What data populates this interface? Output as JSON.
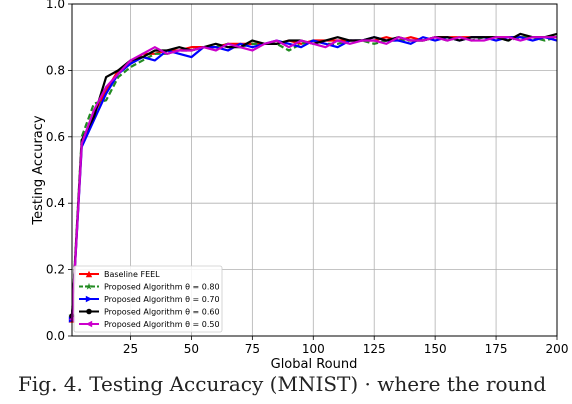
{
  "chart_data": {
    "type": "line",
    "xlabel": "Global Round",
    "ylabel": "Testing Accuracy",
    "xlim": [
      1,
      200
    ],
    "ylim": [
      0.0,
      1.0
    ],
    "xticks": [
      25,
      50,
      75,
      100,
      125,
      150,
      175,
      200
    ],
    "xtick_labels": [
      "25",
      "50",
      "75",
      "100",
      "125",
      "150",
      "175",
      "200"
    ],
    "yticks": [
      0.0,
      0.2,
      0.4,
      0.6,
      0.8,
      1.0
    ],
    "ytick_labels": [
      "0.0",
      "0.2",
      "0.4",
      "0.6",
      "0.8",
      "1.0"
    ],
    "grid": true,
    "legend_position": "lower-left",
    "x": [
      1,
      5,
      10,
      15,
      20,
      25,
      30,
      35,
      40,
      45,
      50,
      55,
      60,
      65,
      70,
      75,
      80,
      85,
      90,
      95,
      100,
      105,
      110,
      115,
      120,
      125,
      130,
      135,
      140,
      145,
      150,
      155,
      160,
      165,
      170,
      175,
      180,
      185,
      190,
      195,
      200
    ],
    "series": [
      {
        "name": "Baseline FEEL",
        "color": "#ff0000",
        "marker": "triangle-up",
        "dashed": false,
        "values": [
          0.05,
          0.58,
          0.67,
          0.74,
          0.8,
          0.82,
          0.85,
          0.85,
          0.86,
          0.86,
          0.87,
          0.87,
          0.87,
          0.88,
          0.88,
          0.88,
          0.88,
          0.88,
          0.89,
          0.88,
          0.89,
          0.89,
          0.89,
          0.89,
          0.89,
          0.89,
          0.9,
          0.89,
          0.9,
          0.89,
          0.9,
          0.9,
          0.9,
          0.9,
          0.9,
          0.9,
          0.9,
          0.9,
          0.9,
          0.9,
          0.9
        ]
      },
      {
        "name": "Proposed Algorithm  θ = 0.80",
        "color": "#228b22",
        "marker": "star",
        "dashed": true,
        "values": [
          0.06,
          0.6,
          0.7,
          0.71,
          0.78,
          0.81,
          0.83,
          0.85,
          0.85,
          0.86,
          0.86,
          0.87,
          0.87,
          0.88,
          0.87,
          0.88,
          0.88,
          0.88,
          0.86,
          0.88,
          0.89,
          0.88,
          0.88,
          0.89,
          0.89,
          0.88,
          0.89,
          0.89,
          0.89,
          0.89,
          0.9,
          0.89,
          0.9,
          0.89,
          0.9,
          0.9,
          0.89,
          0.9,
          0.9,
          0.89,
          0.9
        ]
      },
      {
        "name": "Proposed Algorithm  θ = 0.70",
        "color": "#0000ff",
        "marker": "triangle-right",
        "dashed": false,
        "values": [
          0.05,
          0.57,
          0.65,
          0.73,
          0.79,
          0.82,
          0.84,
          0.83,
          0.86,
          0.85,
          0.84,
          0.87,
          0.87,
          0.86,
          0.88,
          0.87,
          0.88,
          0.89,
          0.88,
          0.87,
          0.89,
          0.88,
          0.87,
          0.89,
          0.89,
          0.9,
          0.89,
          0.89,
          0.88,
          0.9,
          0.89,
          0.9,
          0.89,
          0.9,
          0.9,
          0.89,
          0.9,
          0.9,
          0.89,
          0.9,
          0.89
        ]
      },
      {
        "name": "Proposed Algorithm  θ = 0.60",
        "color": "#000000",
        "marker": "circle",
        "dashed": false,
        "values": [
          0.06,
          0.59,
          0.66,
          0.78,
          0.8,
          0.83,
          0.84,
          0.86,
          0.86,
          0.87,
          0.86,
          0.87,
          0.88,
          0.87,
          0.87,
          0.89,
          0.88,
          0.88,
          0.89,
          0.89,
          0.88,
          0.89,
          0.9,
          0.89,
          0.89,
          0.9,
          0.89,
          0.9,
          0.89,
          0.89,
          0.9,
          0.9,
          0.89,
          0.9,
          0.9,
          0.9,
          0.89,
          0.91,
          0.9,
          0.9,
          0.91
        ]
      },
      {
        "name": "Proposed Algorithm  θ = 0.50",
        "color": "#cc00cc",
        "marker": "triangle-left",
        "dashed": false,
        "values": [
          0.05,
          0.58,
          0.68,
          0.75,
          0.79,
          0.83,
          0.85,
          0.87,
          0.85,
          0.86,
          0.86,
          0.87,
          0.86,
          0.88,
          0.87,
          0.86,
          0.88,
          0.89,
          0.87,
          0.89,
          0.88,
          0.87,
          0.89,
          0.88,
          0.89,
          0.89,
          0.88,
          0.9,
          0.89,
          0.89,
          0.9,
          0.89,
          0.9,
          0.89,
          0.89,
          0.9,
          0.9,
          0.89,
          0.9,
          0.9,
          0.9
        ]
      }
    ]
  },
  "caption": "Fig. 4. Testing Accuracy (MNIST) · where the round"
}
